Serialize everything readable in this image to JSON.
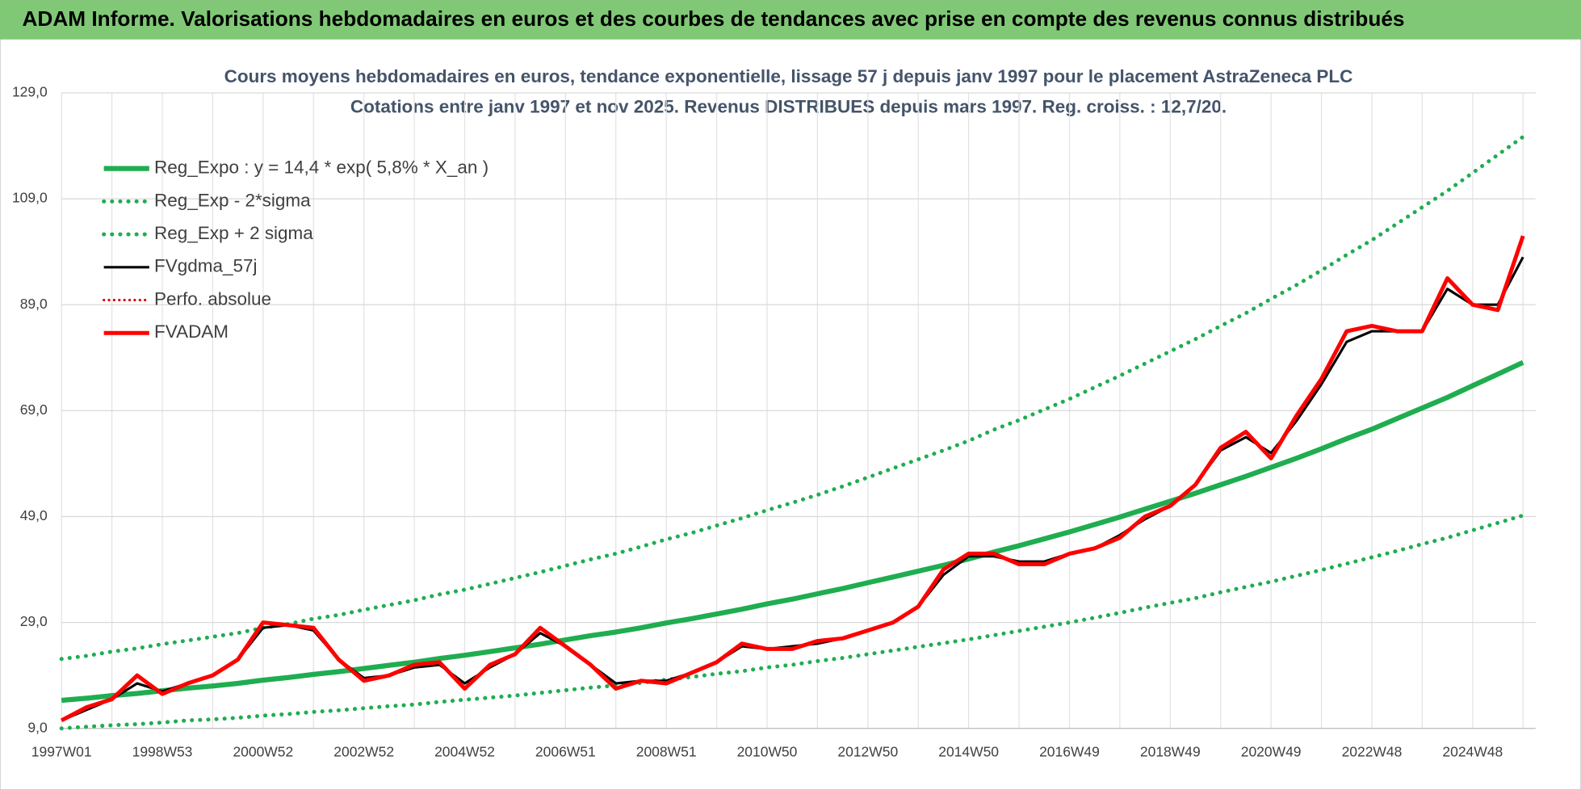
{
  "header": {
    "title": "ADAM Informe. Valorisations hebdomadaires en euros et des courbes de tendances avec prise en compte des revenus connus distribués"
  },
  "chart_data": {
    "type": "line",
    "title": "Cours moyens  hebdomadaires en euros, tendance exponentielle, lissage 57 j depuis janv 1997 pour le placement AstraZeneca PLC",
    "subtitle": "Cotations entre janv 1997 et nov 2025. Revenus DISTRIBUES depuis mars 1997. Reg. croiss. : 12,7/20.",
    "categories": [
      "1997W01",
      null,
      null,
      null,
      "1998W53",
      null,
      null,
      null,
      "2000W52",
      null,
      null,
      null,
      "2002W52",
      null,
      null,
      null,
      "2004W52",
      null,
      null,
      null,
      "2006W51",
      null,
      null,
      null,
      "2008W51",
      null,
      null,
      null,
      "2010W50",
      null,
      null,
      null,
      "2012W50",
      null,
      null,
      null,
      "2014W50",
      null,
      null,
      null,
      "2016W49",
      null,
      null,
      null,
      "2018W49",
      null,
      null,
      null,
      "2020W49",
      null,
      null,
      null,
      "2022W48",
      null,
      null,
      null,
      "2024W48",
      null,
      null
    ],
    "ylim": [
      9,
      129
    ],
    "yticks": [
      {
        "value": 9,
        "label": "9,0"
      },
      {
        "value": 29,
        "label": "29,0"
      },
      {
        "value": 49,
        "label": "49,0"
      },
      {
        "value": 69,
        "label": "69,0"
      },
      {
        "value": 89,
        "label": "89,0"
      },
      {
        "value": 109,
        "label": "109,0"
      },
      {
        "value": 129,
        "label": "129,0"
      }
    ],
    "grid": true,
    "legend": "top-left",
    "series": [
      {
        "name": "Reg_Expo : y = 14,4 * exp( 5,8% *  X_an )",
        "color": "#1fad50",
        "style": "solid",
        "width": 5,
        "values": [
          14.3,
          14.7,
          15.2,
          15.6,
          16.1,
          16.6,
          17.0,
          17.5,
          18.1,
          18.6,
          19.2,
          19.7,
          20.3,
          20.9,
          21.5,
          22.2,
          22.8,
          23.5,
          24.2,
          24.9,
          25.7,
          26.5,
          27.2,
          28.0,
          28.9,
          29.7,
          30.6,
          31.5,
          32.5,
          33.4,
          34.4,
          35.4,
          36.5,
          37.6,
          38.7,
          39.8,
          41.0,
          42.3,
          43.5,
          44.8,
          46.1,
          47.5,
          48.9,
          50.4,
          51.9,
          53.4,
          55.0,
          56.6,
          58.3,
          60.0,
          61.8,
          63.7,
          65.5,
          67.5,
          69.5,
          71.5,
          73.7,
          75.9,
          78.1
        ]
      },
      {
        "name": "Reg_Exp - 2*sigma",
        "color": "#1fad50",
        "style": "dotted",
        "width": 4,
        "values": [
          9.0,
          9.3,
          9.6,
          9.8,
          10.1,
          10.5,
          10.7,
          11.0,
          11.4,
          11.7,
          12.1,
          12.4,
          12.8,
          13.2,
          13.5,
          14.0,
          14.4,
          14.8,
          15.2,
          15.7,
          16.2,
          16.7,
          17.1,
          17.6,
          18.2,
          18.7,
          19.3,
          19.8,
          20.5,
          21.0,
          21.7,
          22.3,
          23.0,
          23.7,
          24.4,
          25.1,
          25.8,
          26.6,
          27.4,
          28.2,
          29.0,
          29.9,
          30.8,
          31.8,
          32.7,
          33.6,
          34.7,
          35.7,
          36.7,
          37.8,
          38.9,
          40.1,
          41.3,
          42.5,
          43.8,
          45.0,
          46.4,
          47.8,
          49.2
        ]
      },
      {
        "name": "Reg_Exp + 2 sigma",
        "color": "#1fad50",
        "style": "dotted",
        "width": 4,
        "values": [
          22.1,
          22.7,
          23.5,
          24.1,
          24.9,
          25.6,
          26.3,
          27.0,
          28.0,
          28.7,
          29.7,
          30.4,
          31.4,
          32.3,
          33.2,
          34.3,
          35.2,
          36.3,
          37.4,
          38.5,
          39.7,
          40.9,
          42.0,
          43.3,
          44.7,
          45.9,
          47.3,
          48.7,
          50.2,
          51.6,
          53.1,
          54.7,
          56.4,
          58.1,
          59.8,
          61.5,
          63.3,
          65.4,
          67.2,
          69.2,
          71.2,
          73.4,
          75.6,
          77.9,
          80.2,
          82.5,
          85.0,
          87.4,
          90.1,
          92.7,
          95.5,
          98.4,
          101.2,
          104.3,
          107.4,
          110.5,
          113.9,
          117.3,
          120.7
        ]
      },
      {
        "name": "FVgdma_57j",
        "color": "#000000",
        "style": "solid",
        "width": 2.5,
        "values": [
          10.5,
          12.5,
          14.5,
          17.5,
          16,
          17.5,
          19,
          22,
          28,
          28.5,
          27.5,
          22,
          18.5,
          19,
          20.5,
          21,
          17.5,
          20.5,
          23,
          27,
          24.5,
          21,
          17.5,
          18,
          18,
          19.5,
          21.5,
          24.5,
          24,
          24.5,
          25,
          26,
          27.5,
          29,
          32,
          38,
          41.5,
          41.5,
          40.5,
          40.5,
          42,
          43,
          45.5,
          48.5,
          51,
          55,
          61.5,
          64,
          61,
          67,
          74,
          82,
          84,
          84,
          84,
          92,
          89,
          89,
          98
        ]
      },
      {
        "name": "Perfo. absolue",
        "color": "#e00000",
        "style": "dotted",
        "width": 2.5,
        "values": [
          null,
          null,
          null,
          null,
          null,
          null,
          null,
          null,
          null,
          null,
          null,
          null,
          null,
          null,
          null,
          null,
          null,
          null,
          null,
          null,
          null,
          null,
          null,
          null,
          null,
          null,
          null,
          null,
          null,
          null,
          null,
          null,
          null,
          null,
          null,
          null,
          null,
          null,
          null,
          null,
          null,
          null,
          null,
          null,
          null,
          null,
          null,
          null,
          null,
          null,
          null,
          null,
          null,
          null,
          null,
          null,
          null,
          null,
          null
        ]
      },
      {
        "name": "FVADAM",
        "color": "#ff0000",
        "style": "solid",
        "width": 4,
        "values": [
          10.5,
          13,
          14.5,
          19,
          15.5,
          17.5,
          19,
          22,
          29,
          28.5,
          28,
          22,
          18,
          19,
          21,
          21.5,
          16.5,
          21,
          23,
          28,
          24.5,
          21,
          16.5,
          18,
          17.5,
          19.5,
          21.5,
          25,
          24,
          24,
          25.5,
          26,
          27.5,
          29,
          32,
          39,
          42,
          42,
          40,
          40,
          42,
          43,
          45,
          49,
          51,
          55,
          62,
          65,
          60,
          68,
          75,
          84,
          85,
          84,
          84,
          94,
          89,
          88,
          102
        ]
      }
    ]
  }
}
